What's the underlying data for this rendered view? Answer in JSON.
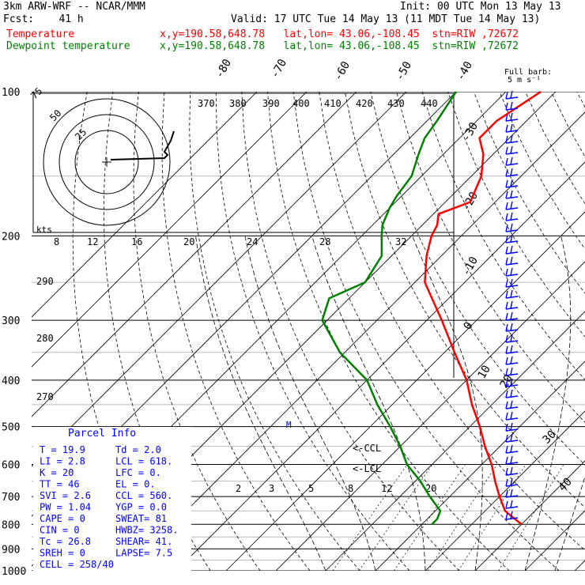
{
  "header": {
    "model": "3km ARW-WRF -- NCAR/MMM",
    "init": "Init: 00 UTC Mon 13 May 13",
    "fcst": "Fcst:    41 h",
    "valid": "Valid: 17 UTC Tue 14 May 13 (11 MDT Tue 14 May 13)",
    "temp_label": "Temperature",
    "dewp_label": "Dewpoint temperature",
    "temp_loc": "x,y=190.58,648.78   lat,lon= 43.06,-108.45  stn=RIW ,72672",
    "dewp_loc": "x,y=190.58,648.78   lat,lon= 43.06,-108.45  stn=RIW ,72672"
  },
  "colors": {
    "temperature": "#ff0000",
    "dewpoint": "#008000",
    "header_text": "#000000",
    "parcel_text": "#0000ff",
    "wind_barbs": "#0000ff",
    "grid": "#000000"
  },
  "legend": {
    "barb_title": "Full barb:",
    "barb_units": "5 m s⁻¹",
    "kts": "kts",
    "hodo_rings": [
      "25",
      "50",
      "75"
    ],
    "hodo_scale": [
      "8",
      "12",
      "16",
      "20",
      "24",
      "28",
      "32"
    ]
  },
  "annotations": {
    "ccl": "<-CCL",
    "lcl": "<-LCL",
    "m_marker": "M"
  },
  "parcel_info": {
    "title": "Parcel Info",
    "rows": [
      [
        "T  =   19.9",
        "Td =   2.0"
      ],
      [
        "LI =    2.8",
        "LCL =  618."
      ],
      [
        "K  =     20",
        "LFC =    0."
      ],
      [
        "TT =     46",
        "EL  =    0."
      ],
      [
        "SVI =   2.6",
        "CCL =  560."
      ],
      [
        "PW =   1.04",
        "YGP =  0.0"
      ],
      [
        "CAPE =    0",
        "SWEAT=  81"
      ],
      [
        "CIN  =    0",
        "HWBZ= 3258."
      ],
      [
        "Tc  =  26.8",
        "SHEAR=  41."
      ],
      [
        "SREH =    0",
        "LAPSE=  7.5"
      ],
      [
        "CELL = 258/40",
        ""
      ]
    ]
  },
  "chart_data": {
    "type": "line",
    "title": "",
    "xlabel": "",
    "ylabel": "",
    "y_axis": "pressure (hPa), log scale",
    "ylim": [
      1000,
      100
    ],
    "pressure_ticks": [
      100,
      200,
      300,
      400,
      500,
      600,
      700,
      800,
      900,
      1000
    ],
    "isotherm_labels": [
      "-80",
      "-70",
      "-60",
      "-50",
      "-40",
      "-30",
      "-20",
      "-10",
      "0",
      "10",
      "20",
      "30",
      "40"
    ],
    "theta_labels": [
      "370",
      "380",
      "390",
      "400",
      "410",
      "420",
      "430",
      "440",
      "290",
      "280",
      "270"
    ],
    "mixing_ratio_labels": [
      "2",
      "3",
      "5",
      "8",
      "12",
      "20"
    ],
    "series": [
      {
        "name": "Temperature",
        "pressure": [
          100,
          115,
          125,
          135,
          150,
          170,
          180,
          190,
          200,
          220,
          250,
          300,
          350,
          400,
          450,
          500,
          550,
          600,
          650,
          700,
          750,
          800
        ],
        "values": [
          -63,
          -66,
          -66,
          -62,
          -58,
          -55,
          -59,
          -57,
          -56,
          -53,
          -48,
          -37,
          -28,
          -20,
          -14,
          -8,
          -3,
          2,
          6,
          10,
          14,
          20
        ]
      },
      {
        "name": "Dewpoint temperature",
        "pressure": [
          100,
          115,
          125,
          135,
          150,
          165,
          175,
          190,
          200,
          220,
          250,
          270,
          300,
          350,
          400,
          450,
          500,
          550,
          600,
          650,
          700,
          750,
          780,
          800
        ],
        "values": [
          -80,
          -78,
          -77,
          -75,
          -72,
          -71,
          -70,
          -68,
          -66,
          -62,
          -60,
          -64,
          -61,
          -51,
          -40,
          -33,
          -26,
          -20,
          -15,
          -9,
          -4,
          1,
          2,
          2
        ]
      }
    ]
  }
}
